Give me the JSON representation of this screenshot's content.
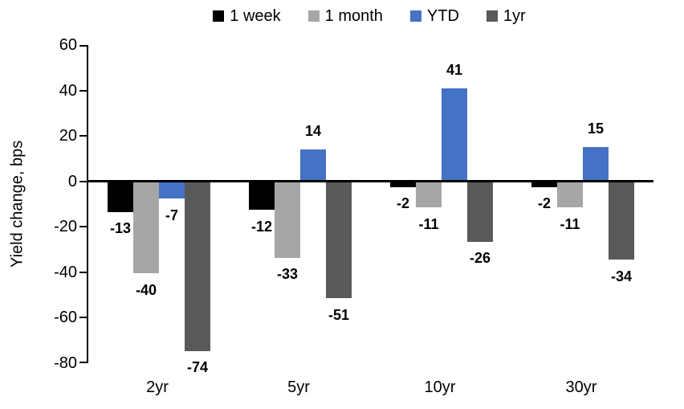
{
  "chart_data": {
    "type": "bar",
    "title": "",
    "xlabel": "",
    "ylabel": "Yield change, bps",
    "categories": [
      "2yr",
      "5yr",
      "10yr",
      "30yr"
    ],
    "series": [
      {
        "name": "1 week",
        "color": "#000000",
        "values": [
          -13,
          -12,
          -2,
          -2
        ]
      },
      {
        "name": "1 month",
        "color": "#A6A6A6",
        "values": [
          -40,
          -33,
          -11,
          -11
        ]
      },
      {
        "name": "YTD",
        "color": "#4472C4",
        "values": [
          -7,
          14,
          41,
          15
        ]
      },
      {
        "name": "1yr",
        "color": "#595959",
        "values": [
          -74,
          -51,
          -26,
          -34
        ]
      }
    ],
    "ylim": [
      -80,
      60
    ],
    "yticks": [
      60,
      40,
      20,
      0,
      -20,
      -40,
      -60,
      -80
    ],
    "grid": false,
    "legend_position": "top",
    "bar_value_labels": true,
    "axis_color": "#000000",
    "background_color": "#FFFFFF"
  }
}
